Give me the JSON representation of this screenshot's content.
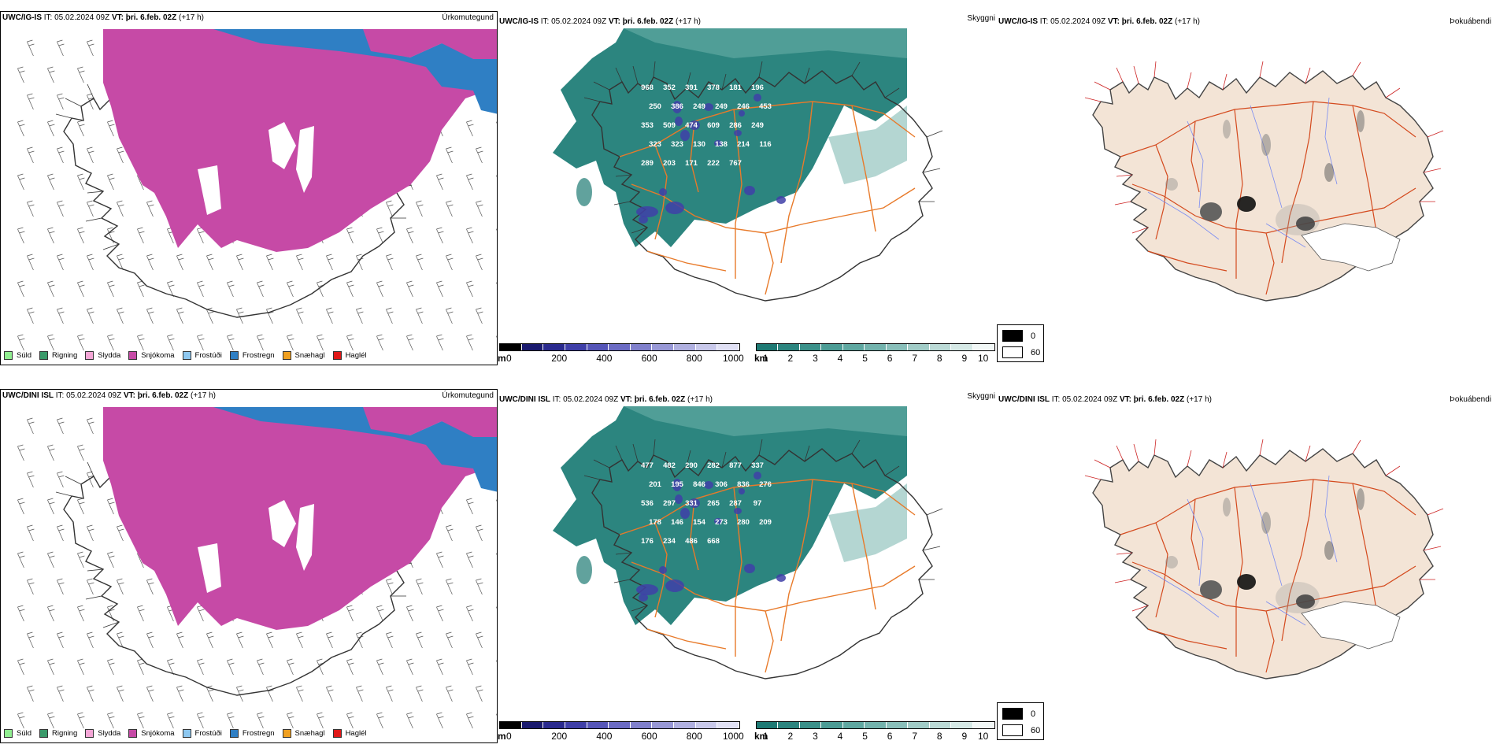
{
  "rows": [
    {
      "panels": [
        {
          "model": "UWC/IG-IS",
          "it_prefix": "IT:",
          "it": "05.02.2024 09Z",
          "vt_prefix": "VT:",
          "vt": "þri. 6.feb. 02Z",
          "lead": "(+17 h)",
          "title": "Úrkomutegund"
        },
        {
          "model": "UWC/IG-IS",
          "it_prefix": "IT:",
          "it": "05.02.2024 09Z",
          "vt_prefix": "VT:",
          "vt": "þri. 6.feb. 02Z",
          "lead": "(+17 h)",
          "title": "Skyggni"
        },
        {
          "model": "UWC/IG-IS",
          "it_prefix": "IT:",
          "it": "05.02.2024 09Z",
          "vt_prefix": "VT:",
          "vt": "þri. 6.feb. 02Z",
          "lead": "(+17 h)",
          "title": "Þokuábendi"
        }
      ],
      "labels": [
        "968",
        "352",
        "391",
        "378",
        "181",
        "196",
        "250",
        "386",
        "249",
        "249",
        "246",
        "453",
        "353",
        "509",
        "474",
        "609",
        "286",
        "249",
        "323",
        "323",
        "130",
        "138",
        "214",
        "116",
        "289",
        "203",
        "171",
        "222",
        "767"
      ]
    },
    {
      "panels": [
        {
          "model": "UWC/DINI ISL",
          "it_prefix": "IT:",
          "it": "05.02.2024 09Z",
          "vt_prefix": "VT:",
          "vt": "þri. 6.feb. 02Z",
          "lead": "(+17 h)",
          "title": "Úrkomutegund"
        },
        {
          "model": "UWC/DINI ISL",
          "it_prefix": "IT:",
          "it": "05.02.2024 09Z",
          "vt_prefix": "VT:",
          "vt": "þri. 6.feb. 02Z",
          "lead": "(+17 h)",
          "title": "Skyggni"
        },
        {
          "model": "UWC/DINI ISL",
          "it_prefix": "IT:",
          "it": "05.02.2024 09Z",
          "vt_prefix": "VT:",
          "vt": "þri. 6.feb. 02Z",
          "lead": "(+17 h)",
          "title": "Þokuábendi"
        }
      ],
      "labels": [
        "477",
        "482",
        "290",
        "282",
        "877",
        "337",
        "201",
        "195",
        "846",
        "306",
        "836",
        "276",
        "536",
        "297",
        "331",
        "265",
        "287",
        "97",
        "178",
        "146",
        "154",
        "273",
        "280",
        "209",
        "176",
        "234",
        "486",
        "668"
      ]
    }
  ],
  "precip_legend": [
    {
      "label": "Súld",
      "color": "#90ee90"
    },
    {
      "label": "Rigning",
      "color": "#3a9a6a"
    },
    {
      "label": "Slydda",
      "color": "#f4a6d6"
    },
    {
      "label": "Snjókoma",
      "color": "#c64aa6"
    },
    {
      "label": "Frostúði",
      "color": "#8ec8f0"
    },
    {
      "label": "Frostregn",
      "color": "#2f7fc4"
    },
    {
      "label": "Snæhagl",
      "color": "#f0a020"
    },
    {
      "label": "Haglél",
      "color": "#e01818"
    }
  ],
  "ceiling_bar": {
    "unit": "m",
    "ticks": [
      "0",
      "200",
      "400",
      "600",
      "800",
      "1000"
    ],
    "colors": [
      "#000000",
      "#1a1a6e",
      "#2a2a8e",
      "#3f3fa8",
      "#5555b8",
      "#6b6bc4",
      "#8080cc",
      "#9898d6",
      "#b0b0e0",
      "#c8c8ea",
      "#e0e0f4"
    ]
  },
  "visibility_bar": {
    "unit": "km",
    "ticks": [
      "1",
      "2",
      "3",
      "4",
      "5",
      "6",
      "7",
      "8",
      "9",
      "10"
    ],
    "colors": [
      "#1e7a74",
      "#2c857f",
      "#3b918a",
      "#4c9c95",
      "#5fa8a1",
      "#73b3ad",
      "#89bfba",
      "#a1ccc7",
      "#bbdad6",
      "#d6e9e6",
      "#f2f8f7"
    ]
  },
  "fog_legend": [
    {
      "label": "0",
      "color": "#000000"
    },
    {
      "label": "60",
      "color": "#ffffff"
    }
  ],
  "colors": {
    "snow": "#c64aa6",
    "freezing_rain": "#2f7fc4",
    "vis_teal": "#2c857f",
    "roads": "#e87a2a",
    "land_fog": "#f3e4d6",
    "coast": "#333333"
  }
}
